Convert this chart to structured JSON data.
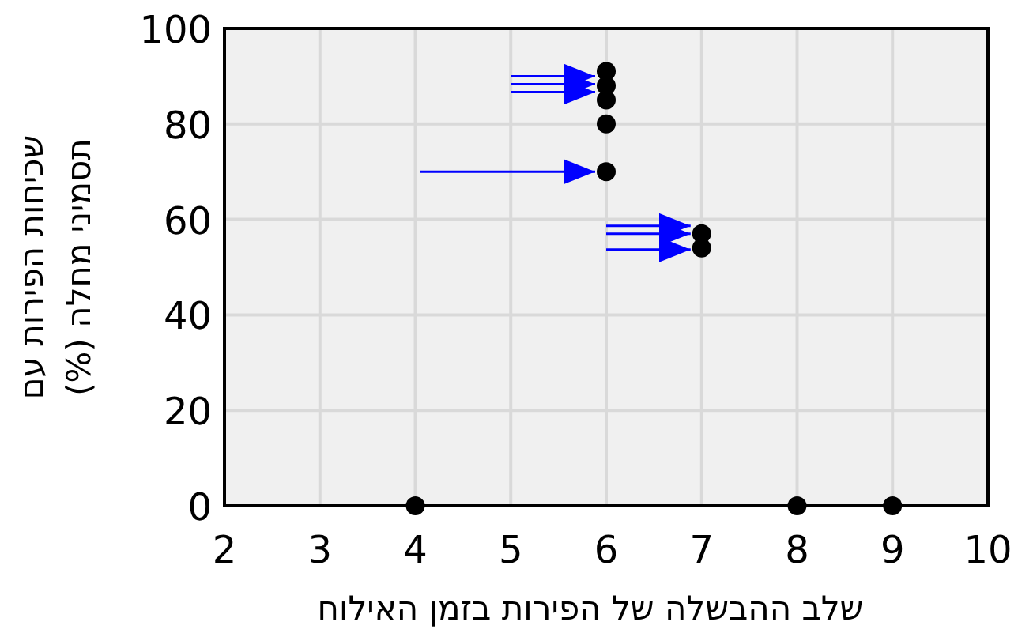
{
  "chart_data": {
    "type": "scatter",
    "xlabel": "שלב ההבשלה של הפירות בזמן האילוח",
    "ylabel": "שכיחות הפירות עם תסמיני מחלה (%)",
    "series": [
      {
        "color": "#000000",
        "x": [
          4,
          8,
          9,
          6,
          6,
          6,
          6,
          6,
          7,
          7
        ],
        "values": [
          0,
          0,
          0,
          91,
          88,
          85,
          80,
          70,
          57,
          54
        ]
      }
    ],
    "xlim": [
      2,
      10
    ],
    "ylim": [
      0,
      100
    ],
    "xticks": [
      2,
      3,
      4,
      5,
      6,
      7,
      8,
      9,
      10
    ],
    "yticks": [
      0,
      20,
      40,
      60,
      80,
      100
    ],
    "grid": true,
    "marker": "circle"
  }
}
